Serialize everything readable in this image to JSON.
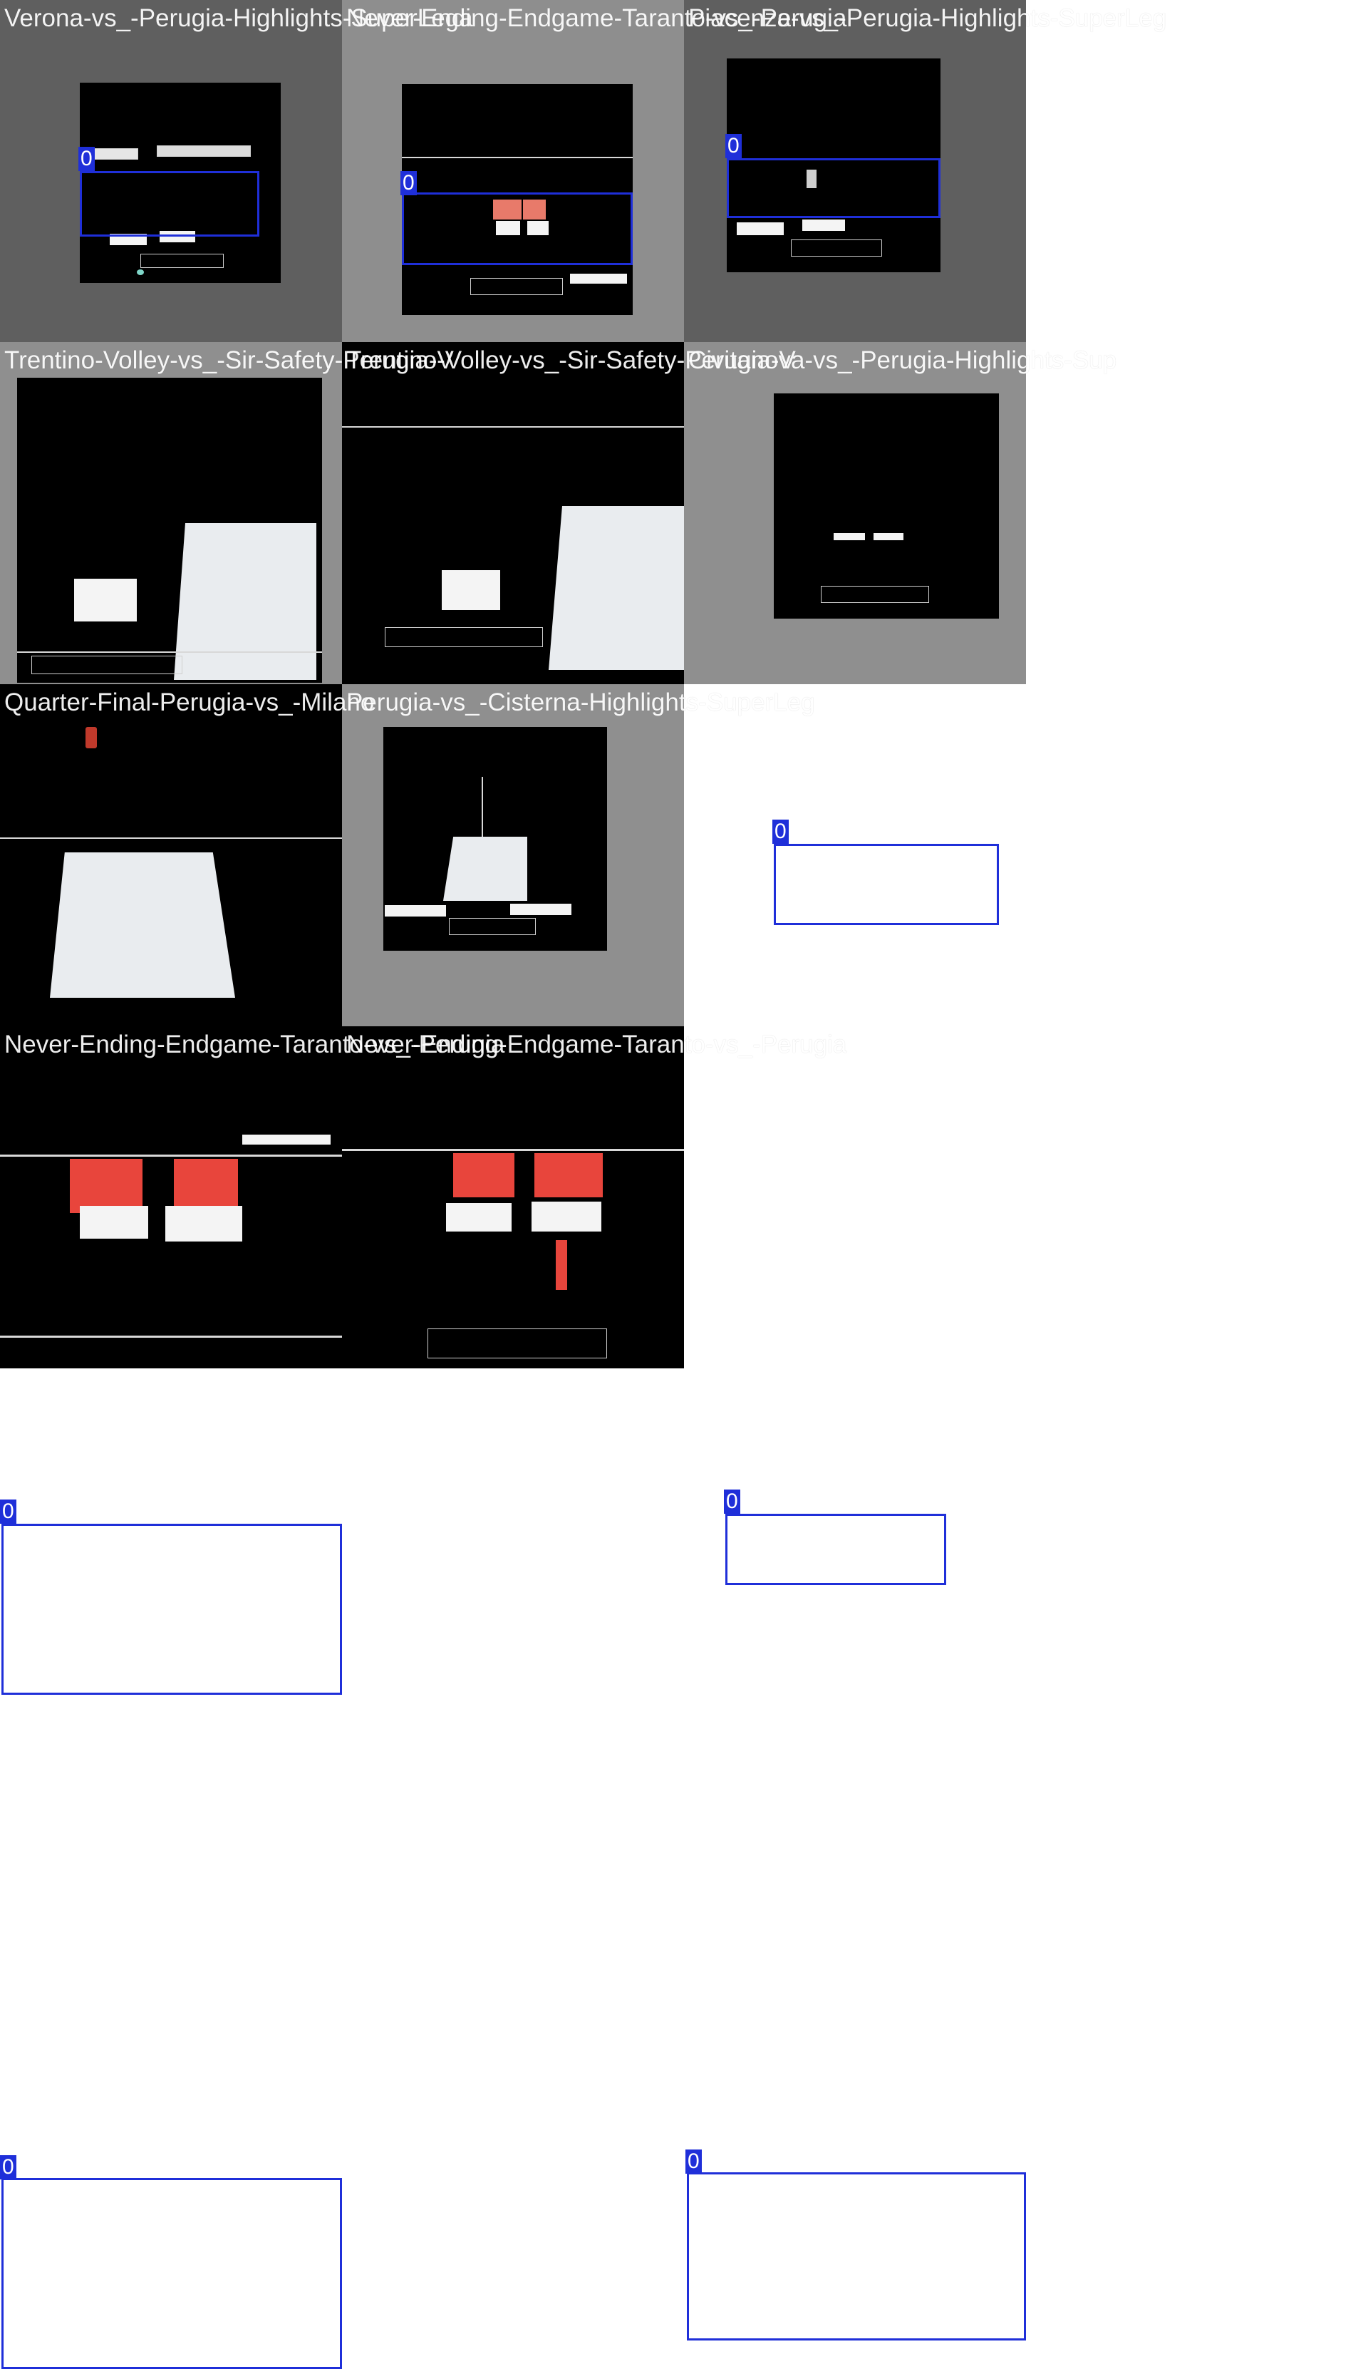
{
  "colors": {
    "box": "#1f2fd9",
    "label_text": "#ffffff",
    "padding_dark": "#616161",
    "padding_light": "#8f8f8f",
    "court_red": "#e8453c"
  },
  "tiles": [
    {
      "title": "Verona-vs_-Perugia-Highlights-SuperLega",
      "label": "0"
    },
    {
      "title": "Never-Ending-Endgame-Taranto-vs_-Perugia",
      "label": "0"
    },
    {
      "title": "Piacenza-vs_-Perugia-Highlights-SuperLeg",
      "label": "0"
    },
    {
      "title": "Trentino-Volley-vs_-Sir-Safety-Perugia-V",
      "label": "0"
    },
    {
      "title": "Trentino-Volley-vs_-Sir-Safety-Perugia-V",
      "label": "0"
    },
    {
      "title": "Civitanova-vs_-Perugia-Highlights-Sup",
      "label": "0"
    },
    {
      "title": "Quarter-Final-Perugia-vs_-Milano",
      "label": "0"
    },
    {
      "title": "Perugia-vs_-Cisterna-Highlights-SuperLeg",
      "label": "0"
    },
    {
      "title": "Never-Ending-Endgame-Taranto-vs_-Perugia",
      "label": "0"
    },
    {
      "title": "Never-Ending-Endgame-Taranto-vs_-Perugia",
      "label": "0"
    }
  ]
}
